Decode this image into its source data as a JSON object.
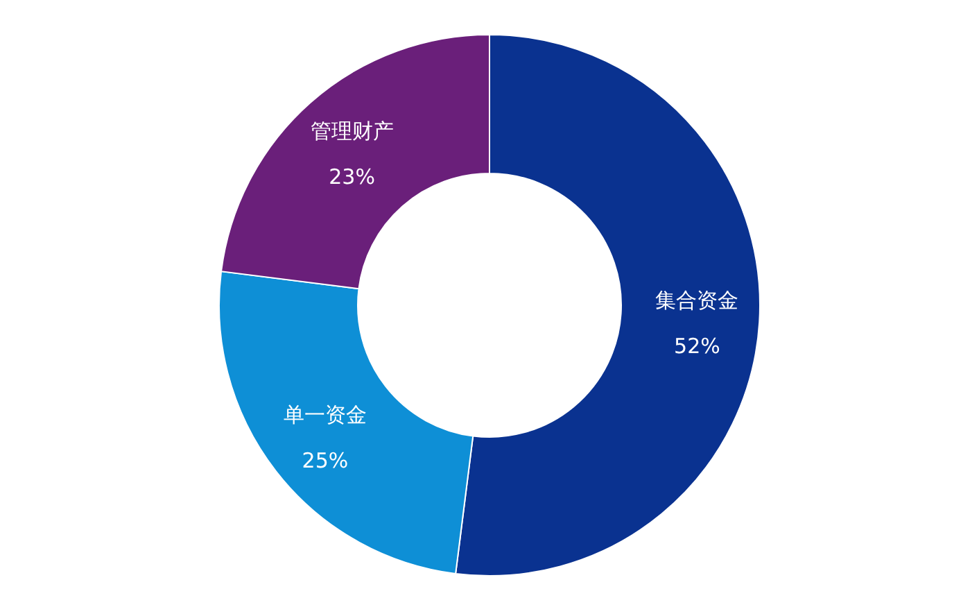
{
  "chart_data": {
    "type": "donut",
    "categories": [
      "集合资金",
      "单一资金",
      "管理财产"
    ],
    "values": [
      52,
      25,
      23
    ],
    "colors": [
      "#0a3290",
      "#0e8fd6",
      "#6a1f7a"
    ],
    "value_labels": [
      "52%",
      "25%",
      "23%"
    ],
    "legend": false
  }
}
